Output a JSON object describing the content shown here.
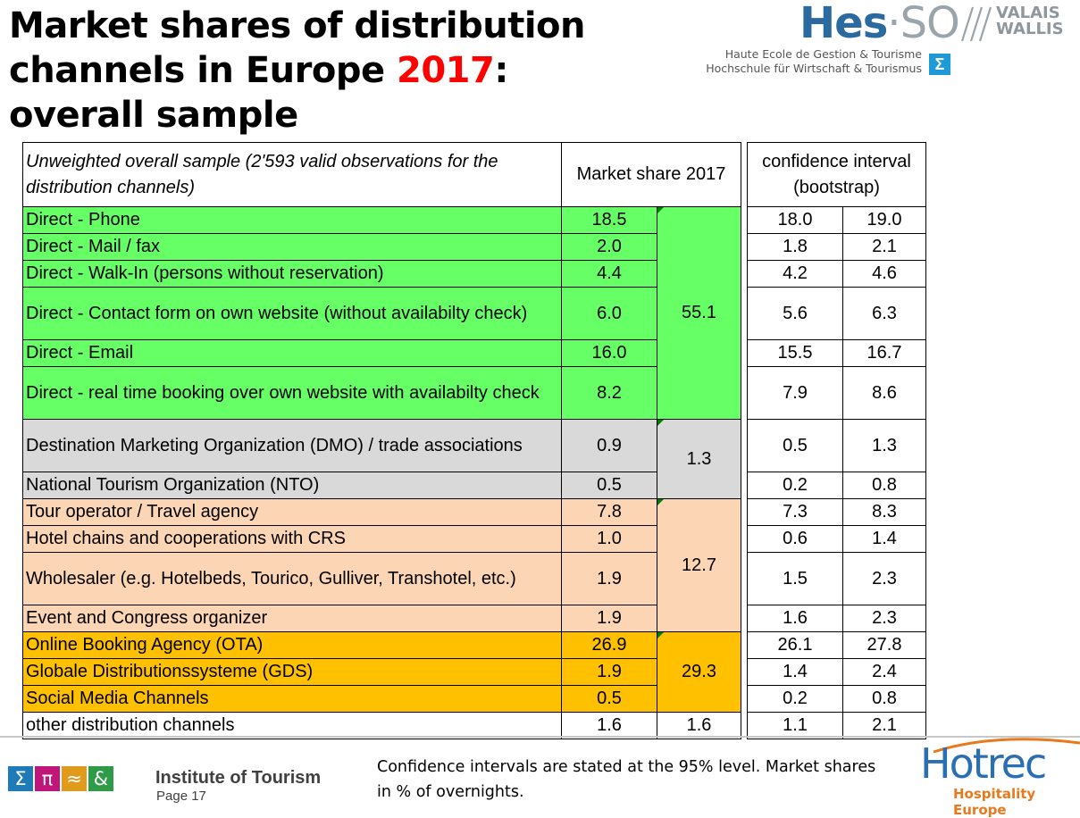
{
  "title": {
    "before": "Market shares of distribution channels in Europe ",
    "year": "2017",
    "after": ": overall sample"
  },
  "logo_hes": {
    "brand_main": "Hes",
    "brand_dot": "·",
    "brand_so": "SO",
    "region_line1": "VALAIS",
    "region_line2": "WALLIS",
    "sub_line1": "Haute Ecole de Gestion & Tourisme",
    "sub_line2": "Hochschule für Wirtschaft & Tourismus",
    "sigma": "Σ",
    "brand_color": "#2a6a9e"
  },
  "table": {
    "header": {
      "description": "Unweighted overall sample (2'593 valid observations for the distribution channels)",
      "market_share": "Market share 2017",
      "ci": "confidence interval (bootstrap)"
    },
    "colors": {
      "direct": "#66ff66",
      "dmo": "#d9d9d9",
      "intermediary": "#fcd5b4",
      "online": "#ffc000",
      "other": "#ffffff"
    },
    "rows": [
      {
        "label": "Direct - Phone",
        "share": "18.5",
        "lo": "18.0",
        "hi": "19.0"
      },
      {
        "label": "Direct - Mail / fax",
        "share": "2.0",
        "lo": "1.8",
        "hi": "2.1"
      },
      {
        "label": "Direct - Walk-In (persons without reservation)",
        "share": "4.4",
        "lo": "4.2",
        "hi": "4.6"
      },
      {
        "label": "Direct - Contact form on own website (without availabilty check)",
        "share": "6.0",
        "lo": "5.6",
        "hi": "6.3"
      },
      {
        "label": "Direct - Email",
        "share": "16.0",
        "lo": "15.5",
        "hi": "16.7"
      },
      {
        "label": "Direct - real time booking over own website with availabilty check",
        "share": "8.2",
        "lo": "7.9",
        "hi": "8.6"
      },
      {
        "label": "Destination Marketing Organization (DMO) / trade associations",
        "share": "0.9",
        "lo": "0.5",
        "hi": "1.3"
      },
      {
        "label": "National Tourism Organization (NTO)",
        "share": "0.5",
        "lo": "0.2",
        "hi": "0.8"
      },
      {
        "label": "Tour operator / Travel agency",
        "share": "7.8",
        "lo": "7.3",
        "hi": "8.3"
      },
      {
        "label": "Hotel chains and cooperations with CRS",
        "share": "1.0",
        "lo": "0.6",
        "hi": "1.4"
      },
      {
        "label": "Wholesaler (e.g. Hotelbeds, Tourico, Gulliver, Transhotel, etc.)",
        "share": "1.9",
        "lo": "1.5",
        "hi": "2.3"
      },
      {
        "label": "Event and Congress organizer",
        "share": "1.9",
        "lo": "1.6",
        "hi": "2.3"
      },
      {
        "label": "Online Booking Agency (OTA)",
        "share": "26.9",
        "lo": "26.1",
        "hi": "27.8"
      },
      {
        "label": "Globale Distributionssysteme (GDS)",
        "share": "1.9",
        "lo": "1.4",
        "hi": "2.4"
      },
      {
        "label": "Social Media Channels",
        "share": "0.5",
        "lo": "0.2",
        "hi": "0.8"
      },
      {
        "label": "other distribution channels",
        "share": "1.6",
        "lo": "1.1",
        "hi": "2.1"
      }
    ],
    "group_totals": {
      "direct": "55.1",
      "dmo": "1.3",
      "intermediary": "12.7",
      "online": "29.3",
      "other": "1.6"
    }
  },
  "footer": {
    "icon_labels": [
      "Σ",
      "π",
      "≈",
      "&"
    ],
    "icon_colors": [
      "#1f7ab8",
      "#c0167a",
      "#e09a1c",
      "#2e9c46"
    ],
    "institute": "Institute of Tourism",
    "page": "Page 17",
    "note": "Confidence intervals are stated at the 95% level. Market shares in % of overnights.",
    "hotrec_word": "Hotrec",
    "hotrec_tag": "Hospitality Europe"
  }
}
